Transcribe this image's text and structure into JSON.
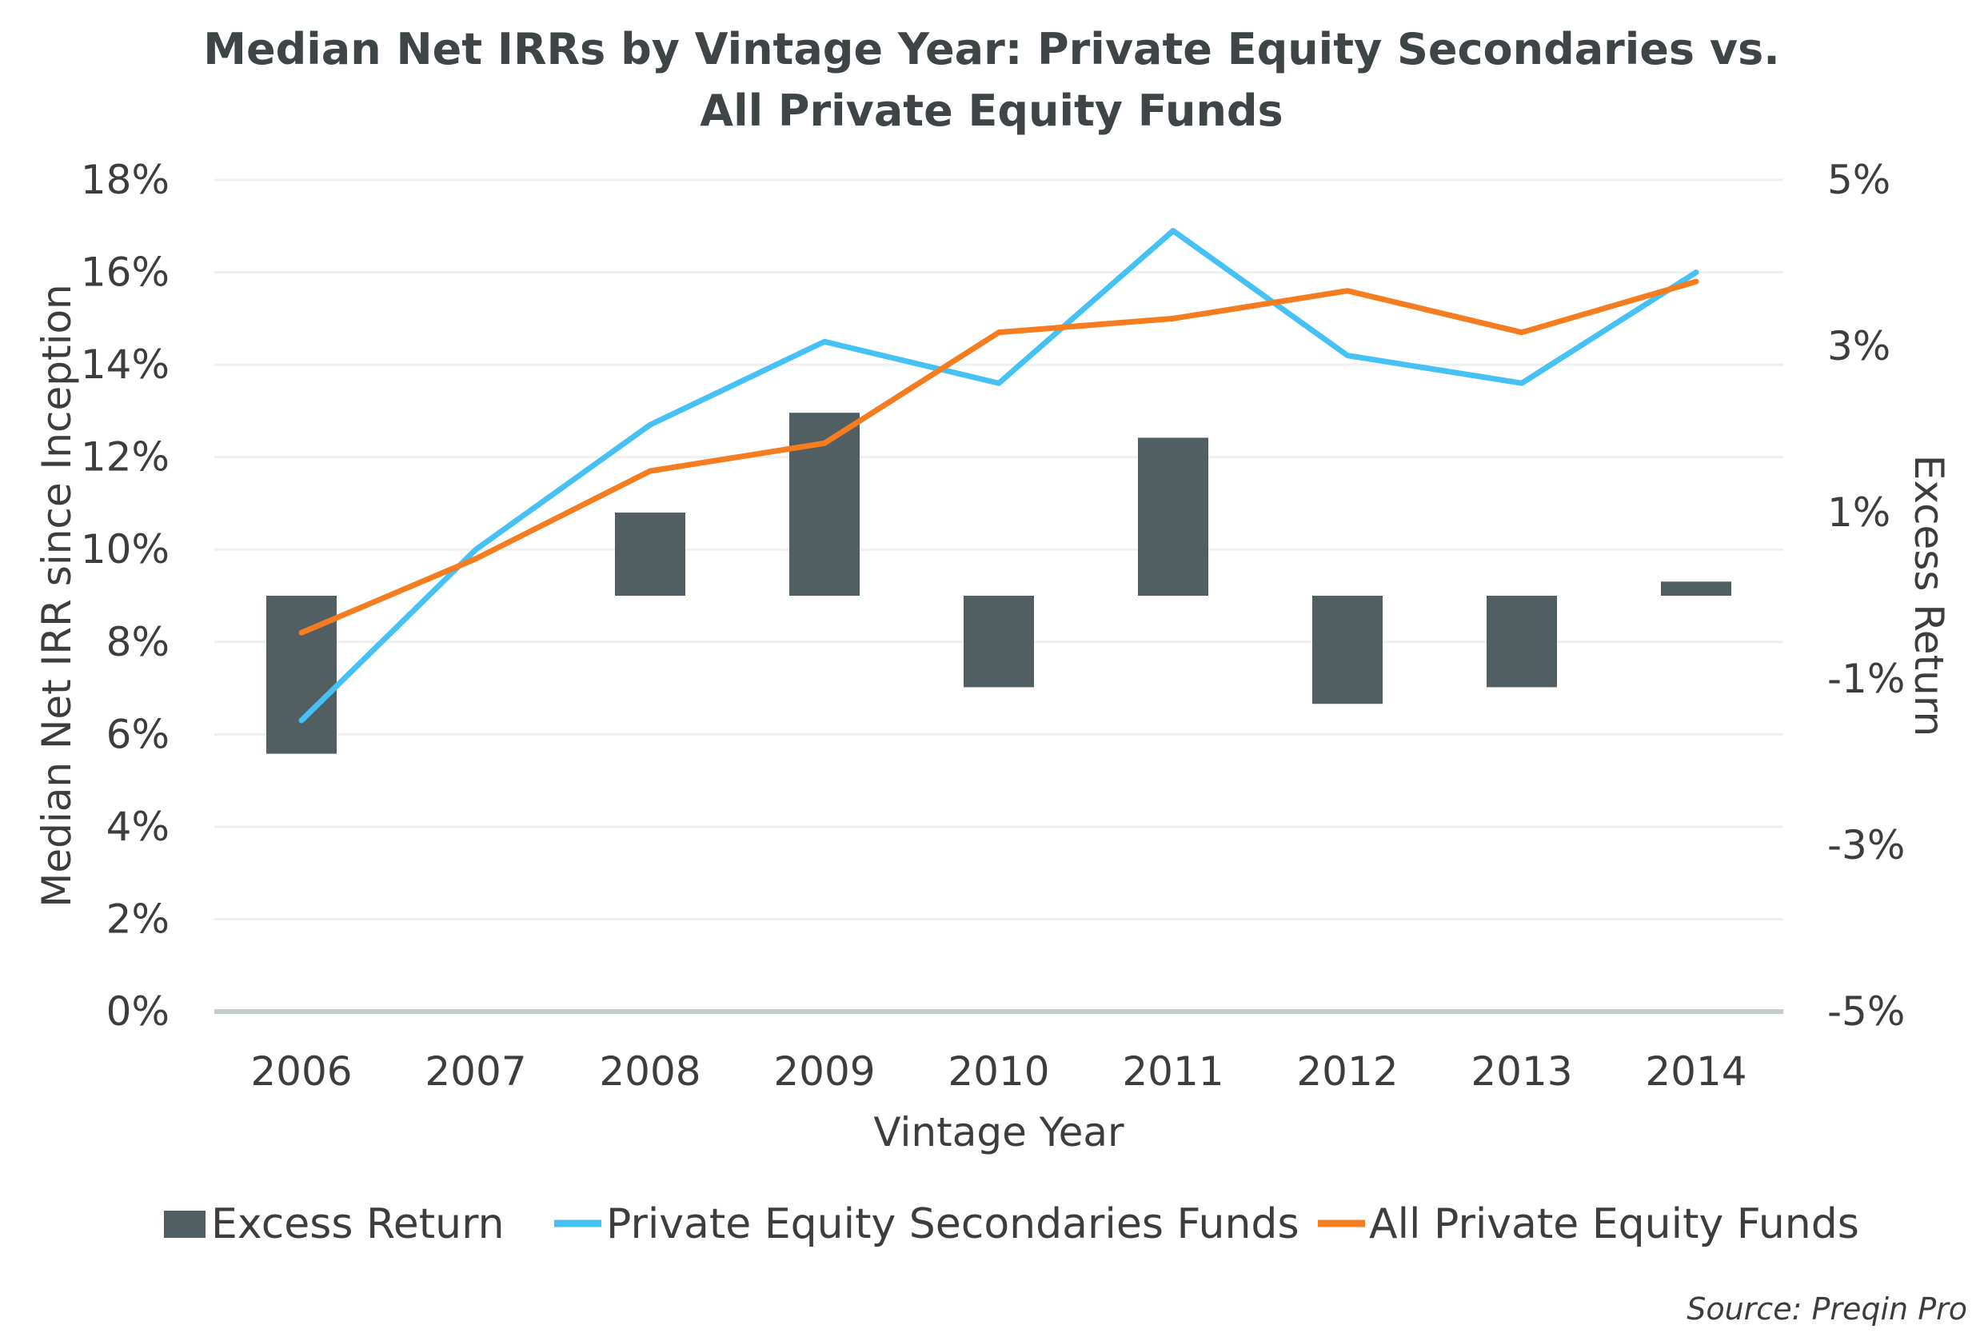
{
  "colors": {
    "excess_bar": "#515f63",
    "secondaries_line": "#45c1f5",
    "all_pe_line": "#f57c1f",
    "grid": "#eef0f0",
    "baseline": "#c3cdcd",
    "text": "#3d3d3d"
  },
  "chart_data": {
    "type": "bar",
    "title_line1": "Median Net IRRs by Vintage Year: Private Equity Secondaries vs.",
    "title_line2": "All Private Equity Funds",
    "xlabel": "Vintage Year",
    "ylabel_left": "Median Net IRR since Inception",
    "ylabel_right": "Excess Return",
    "categories": [
      "2006",
      "2007",
      "2008",
      "2009",
      "2010",
      "2011",
      "2012",
      "2013",
      "2014"
    ],
    "y_left": {
      "min": 0,
      "max": 18,
      "ticks": [
        "0%",
        "2%",
        "4%",
        "6%",
        "8%",
        "10%",
        "12%",
        "14%",
        "16%",
        "18%"
      ]
    },
    "y_right": {
      "min": -5,
      "max": 5,
      "ticks": [
        "-5%",
        "-3%",
        "-1%",
        "1%",
        "3%",
        "5%"
      ]
    },
    "grid": true,
    "legend_position": "bottom",
    "series": [
      {
        "name": "Excess Return",
        "type": "bar",
        "axis": "right",
        "values": [
          -1.9,
          null,
          1.0,
          2.2,
          -1.1,
          1.9,
          -1.3,
          -1.1,
          0.17
        ]
      },
      {
        "name": "Private Equity Secondaries Funds",
        "type": "line",
        "axis": "left",
        "values": [
          6.3,
          10.0,
          12.7,
          14.5,
          13.6,
          16.9,
          14.2,
          13.6,
          16.0
        ]
      },
      {
        "name": "All Private Equity Funds",
        "type": "line",
        "axis": "left",
        "values": [
          8.2,
          9.8,
          11.7,
          12.3,
          14.7,
          15.0,
          15.6,
          14.7,
          15.8
        ]
      }
    ],
    "source": "Source: Preqin Pro"
  }
}
